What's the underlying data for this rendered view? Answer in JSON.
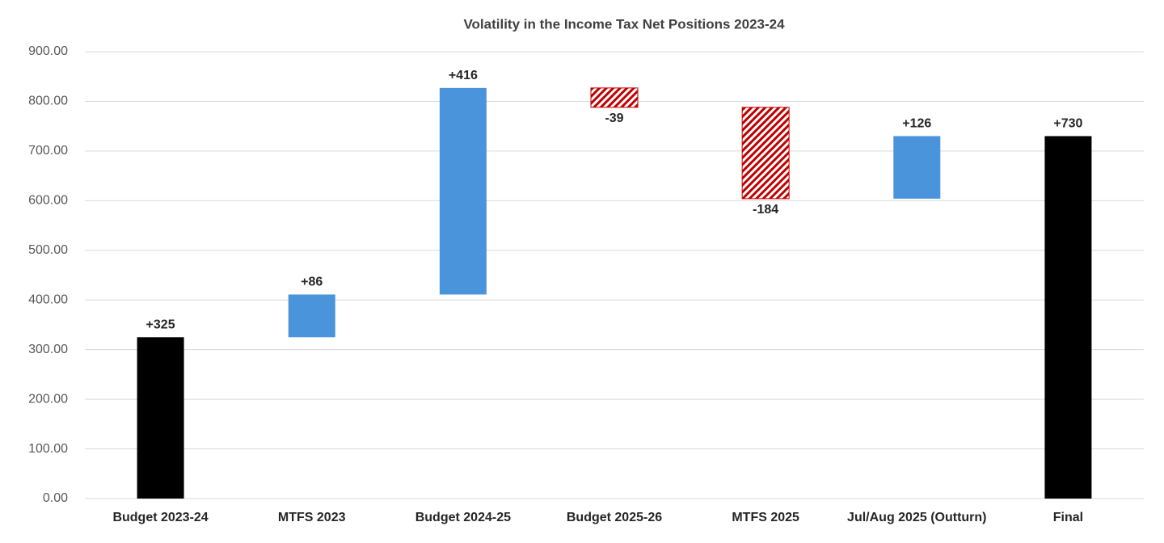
{
  "chart_data": {
    "type": "waterfall",
    "title": "Volatility in the Income Tax Net Positions 2023-24",
    "categories": [
      "Budget 2023-24",
      "MTFS 2023",
      "Budget 2024-25",
      "Budget 2025-26",
      "MTFS 2025",
      "Jul/Aug 2025 (Outturn)",
      "Final"
    ],
    "values": [
      325,
      86,
      416,
      -39,
      -184,
      126,
      730
    ],
    "value_labels": [
      "+325",
      "+86",
      "+416",
      "-39",
      "-184",
      "+126",
      "+730"
    ],
    "measures": [
      "total",
      "relative",
      "relative",
      "relative",
      "relative",
      "relative",
      "total"
    ],
    "colors": {
      "increase": "#4a94dc",
      "decrease": "#c00000",
      "total": "#000000"
    },
    "decrease_hatched": true,
    "ylim": [
      0,
      900
    ],
    "yticks": [
      {
        "value": 0,
        "label": "0.00"
      },
      {
        "value": 100,
        "label": "100.00"
      },
      {
        "value": 200,
        "label": "200.00"
      },
      {
        "value": 300,
        "label": "300.00"
      },
      {
        "value": 400,
        "label": "400.00"
      },
      {
        "value": 500,
        "label": "500.00"
      },
      {
        "value": 600,
        "label": "600.00"
      },
      {
        "value": 700,
        "label": "700.00"
      },
      {
        "value": 800,
        "label": "800.00"
      },
      {
        "value": 900,
        "label": "900.00"
      }
    ],
    "grid": true
  }
}
